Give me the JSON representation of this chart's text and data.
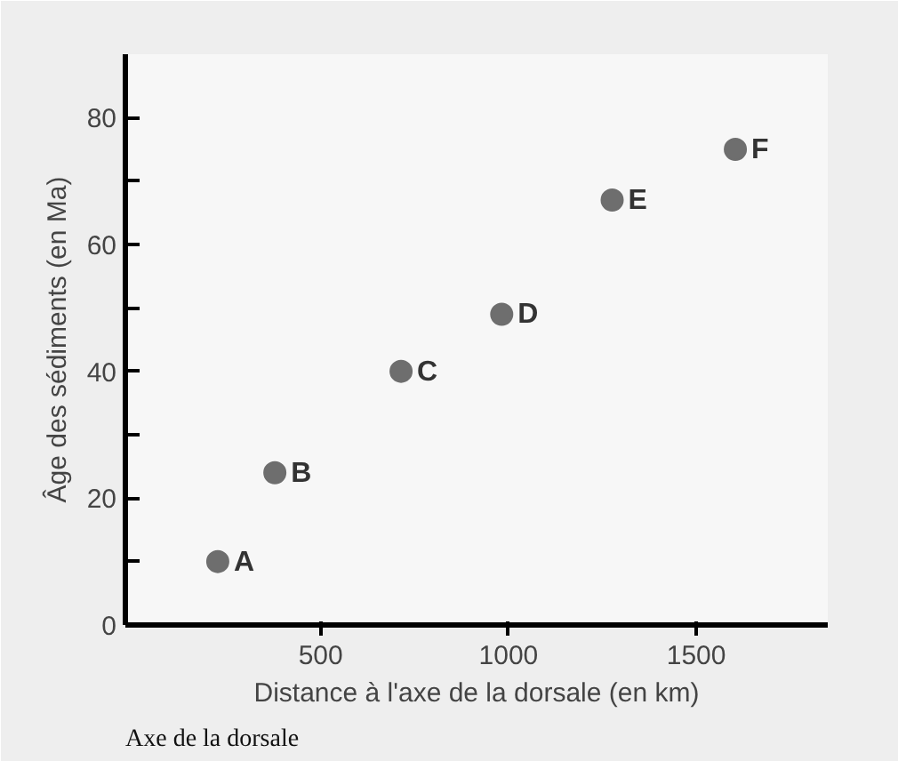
{
  "chart_data": {
    "type": "scatter",
    "xlabel": "Distance à l'axe de la dorsale (en km)",
    "ylabel": "Âge des sédiments (en Ma)",
    "x": [
      226,
      378,
      714,
      982,
      1276,
      1604
    ],
    "series": [
      {
        "color": "#6e6e6e",
        "values": [
          10,
          24,
          40,
          49,
          67,
          75
        ]
      }
    ],
    "marker": "circle",
    "xlim": [
      -20,
      1850
    ],
    "ylim": [
      0,
      90
    ],
    "xticks": [
      500,
      1000,
      1500
    ],
    "yticks": [
      0,
      {
        "value": 10,
        "label": null
      },
      20,
      {
        "value": 30,
        "label": null
      },
      40,
      {
        "value": 50,
        "label": null
      },
      60,
      {
        "value": 70,
        "label": null
      },
      80
    ],
    "grid": false,
    "annotations": [
      {
        "text": "A",
        "x": 226,
        "y": 10
      },
      {
        "text": "B",
        "x": 378,
        "y": 24
      },
      {
        "text": "C",
        "x": 714,
        "y": 40
      },
      {
        "text": "D",
        "x": 982,
        "y": 49
      },
      {
        "text": "E",
        "x": 1276,
        "y": 67
      },
      {
        "text": "F",
        "x": 1604,
        "y": 75
      },
      "Axe de la dorsale"
    ]
  }
}
